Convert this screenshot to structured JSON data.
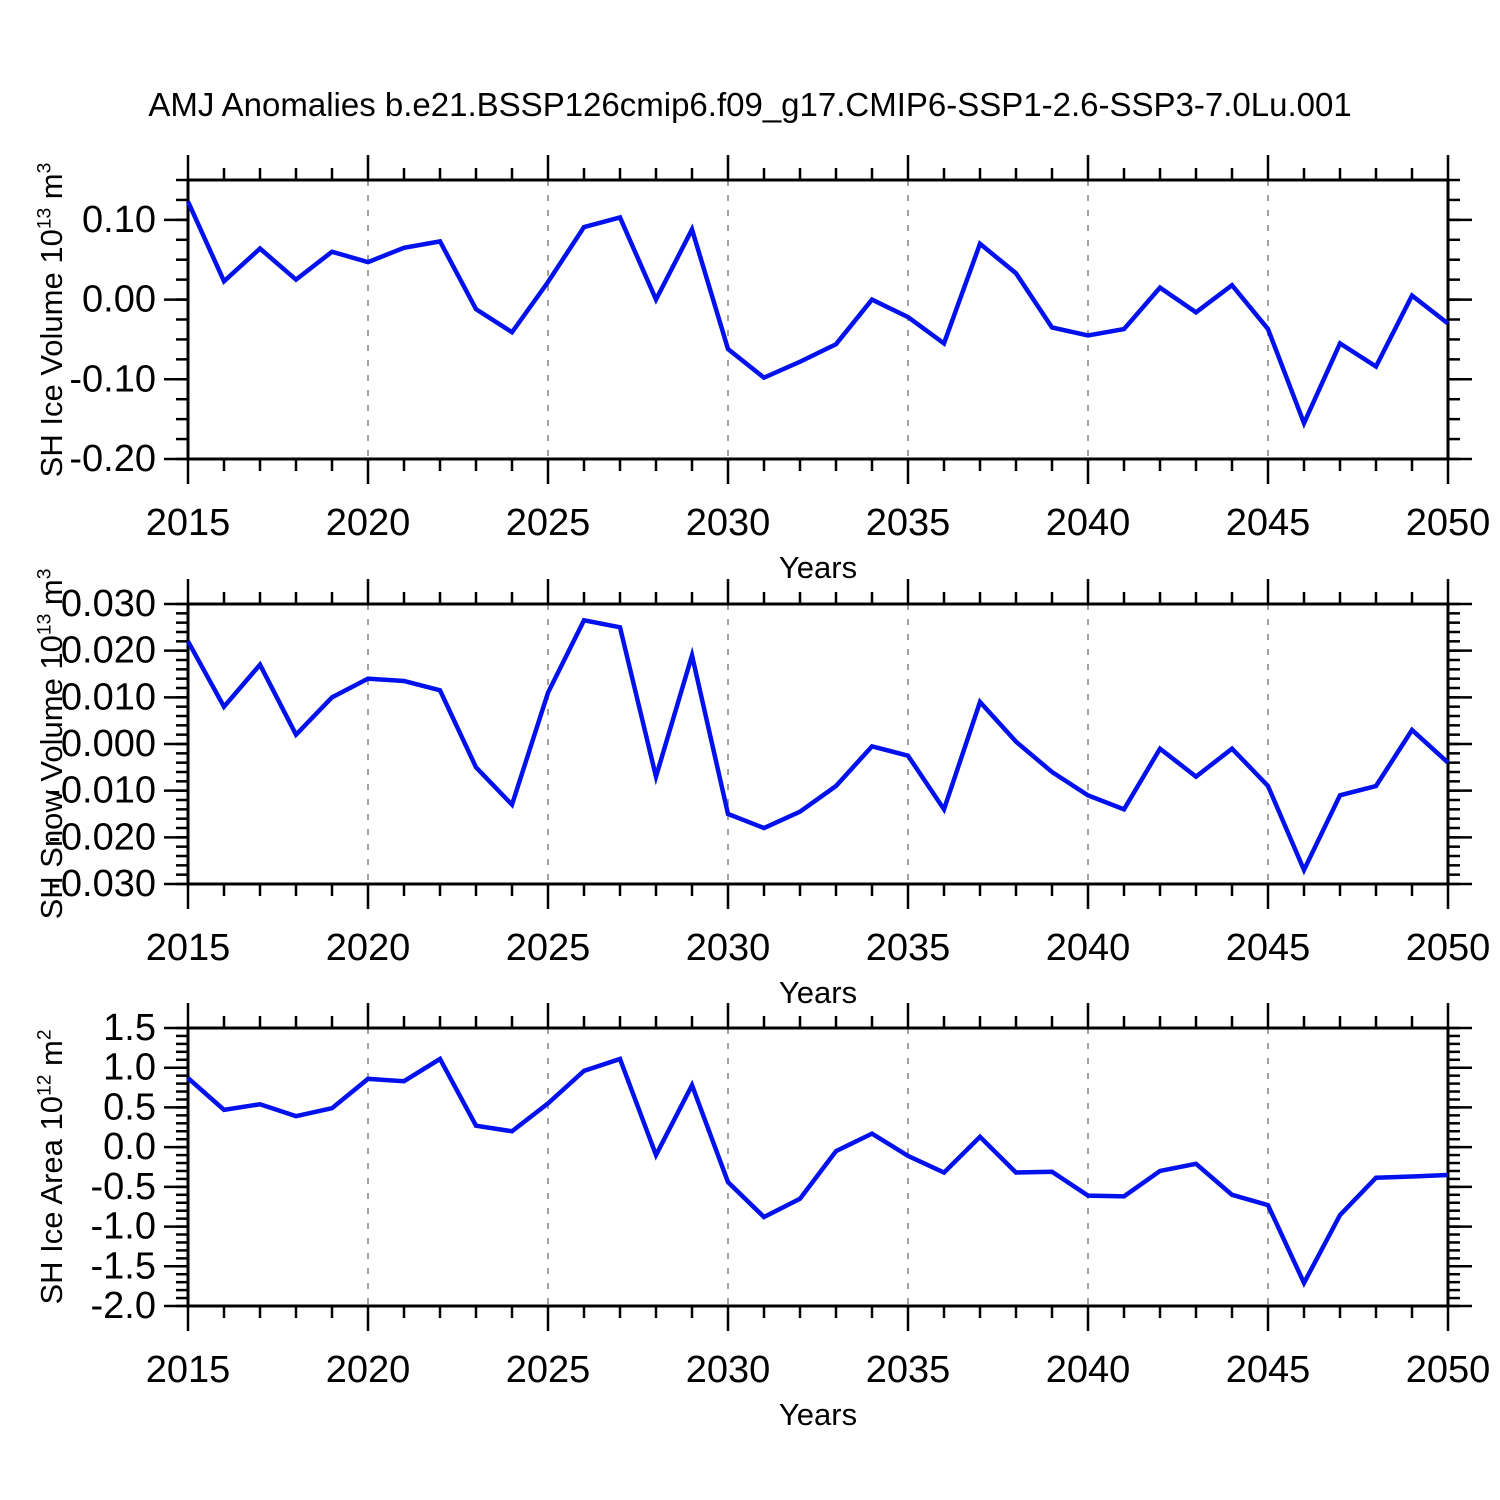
{
  "title": "AMJ Anomalies b.e21.BSSP126cmip6.f09_g17.CMIP6-SSP1-2.6-SSP3-7.0Lu.001",
  "xlabel": "Years",
  "line_color": "#0011ee",
  "grid_color": "#999999",
  "axis_color": "#000000",
  "chart_data": [
    {
      "type": "line",
      "name": "sh-ice-volume",
      "ylabel": {
        "prefix": "SH Ice Volume 10",
        "sup1": "13",
        "mid": " m",
        "sup2": "3"
      },
      "xlabel": "Years",
      "xlim": [
        2015,
        2050
      ],
      "ylim": [
        -0.2,
        0.15
      ],
      "yticks": [
        {
          "value": 0.1,
          "label": "0.10"
        },
        {
          "value": 0.0,
          "label": "0.00"
        },
        {
          "value": -0.1,
          "label": "-0.10"
        },
        {
          "value": -0.2,
          "label": "-0.20"
        }
      ],
      "yminor_step": 0.025,
      "xticks": [
        2015,
        2020,
        2025,
        2030,
        2035,
        2040,
        2045,
        2050
      ],
      "xminor_step": 1,
      "grid_x": [
        2020,
        2025,
        2030,
        2035,
        2040,
        2045
      ],
      "x": [
        2015,
        2016,
        2017,
        2018,
        2019,
        2020,
        2021,
        2022,
        2023,
        2024,
        2025,
        2026,
        2027,
        2028,
        2029,
        2030,
        2031,
        2032,
        2033,
        2034,
        2035,
        2036,
        2037,
        2038,
        2039,
        2040,
        2041,
        2042,
        2043,
        2044,
        2045,
        2046,
        2047,
        2048,
        2049,
        2050
      ],
      "values": [
        0.123,
        0.023,
        0.064,
        0.025,
        0.06,
        0.047,
        0.065,
        0.073,
        -0.012,
        -0.041,
        0.022,
        0.091,
        0.103,
        0.0,
        0.088,
        -0.062,
        -0.098,
        -0.078,
        -0.056,
        0.0,
        -0.022,
        -0.055,
        0.07,
        0.033,
        -0.035,
        -0.045,
        -0.037,
        0.015,
        -0.016,
        0.018,
        -0.037,
        -0.155,
        -0.055,
        -0.084,
        0.005,
        -0.03
      ]
    },
    {
      "type": "line",
      "name": "sh-snow-volume",
      "ylabel": {
        "prefix": "SH Snow Volume 10",
        "sup1": "13",
        "mid": " m",
        "sup2": "3"
      },
      "xlabel": "Years",
      "xlim": [
        2015,
        2050
      ],
      "ylim": [
        -0.03,
        0.03
      ],
      "yticks": [
        {
          "value": 0.03,
          "label": "0.030"
        },
        {
          "value": 0.02,
          "label": "0.020"
        },
        {
          "value": 0.01,
          "label": "0.010"
        },
        {
          "value": 0.0,
          "label": "0.000"
        },
        {
          "value": -0.01,
          "label": "-0.010"
        },
        {
          "value": -0.02,
          "label": "-0.020"
        },
        {
          "value": -0.03,
          "label": "-0.030"
        }
      ],
      "yminor_step": 0.002,
      "xticks": [
        2015,
        2020,
        2025,
        2030,
        2035,
        2040,
        2045,
        2050
      ],
      "xminor_step": 1,
      "grid_x": [
        2020,
        2025,
        2030,
        2035,
        2040,
        2045
      ],
      "x": [
        2015,
        2016,
        2017,
        2018,
        2019,
        2020,
        2021,
        2022,
        2023,
        2024,
        2025,
        2026,
        2027,
        2028,
        2029,
        2030,
        2031,
        2032,
        2033,
        2034,
        2035,
        2036,
        2037,
        2038,
        2039,
        2040,
        2041,
        2042,
        2043,
        2044,
        2045,
        2046,
        2047,
        2048,
        2049,
        2050
      ],
      "values": [
        0.022,
        0.008,
        0.017,
        0.002,
        0.01,
        0.014,
        0.0135,
        0.0115,
        -0.005,
        -0.013,
        0.011,
        0.0265,
        0.025,
        -0.007,
        0.019,
        -0.015,
        -0.018,
        -0.0145,
        -0.009,
        -0.0005,
        -0.0025,
        -0.014,
        0.009,
        0.0005,
        -0.006,
        -0.011,
        -0.014,
        -0.001,
        -0.007,
        -0.001,
        -0.009,
        -0.027,
        -0.011,
        -0.009,
        0.003,
        -0.004
      ]
    },
    {
      "type": "line",
      "name": "sh-ice-area",
      "ylabel": {
        "prefix": "SH Ice Area 10",
        "sup1": "12",
        "mid": " m",
        "sup2": "2"
      },
      "xlabel": "Years",
      "xlim": [
        2015,
        2050
      ],
      "ylim": [
        -2.0,
        1.5
      ],
      "yticks": [
        {
          "value": 1.5,
          "label": "1.5"
        },
        {
          "value": 1.0,
          "label": "1.0"
        },
        {
          "value": 0.5,
          "label": "0.5"
        },
        {
          "value": 0.0,
          "label": "0.0"
        },
        {
          "value": -0.5,
          "label": "-0.5"
        },
        {
          "value": -1.0,
          "label": "-1.0"
        },
        {
          "value": -1.5,
          "label": "-1.5"
        },
        {
          "value": -2.0,
          "label": "-2.0"
        }
      ],
      "yminor_step": 0.1,
      "xticks": [
        2015,
        2020,
        2025,
        2030,
        2035,
        2040,
        2045,
        2050
      ],
      "xminor_step": 1,
      "grid_x": [
        2020,
        2025,
        2030,
        2035,
        2040,
        2045
      ],
      "x": [
        2015,
        2016,
        2017,
        2018,
        2019,
        2020,
        2021,
        2022,
        2023,
        2024,
        2025,
        2026,
        2027,
        2028,
        2029,
        2030,
        2031,
        2032,
        2033,
        2034,
        2035,
        2036,
        2037,
        2038,
        2039,
        2040,
        2041,
        2042,
        2043,
        2044,
        2045,
        2046,
        2047,
        2048,
        2049,
        2050
      ],
      "values": [
        0.87,
        0.47,
        0.54,
        0.39,
        0.49,
        0.86,
        0.83,
        1.11,
        0.27,
        0.2,
        0.55,
        0.96,
        1.11,
        -0.1,
        0.78,
        -0.44,
        -0.88,
        -0.65,
        -0.05,
        0.17,
        -0.11,
        -0.32,
        0.13,
        -0.32,
        -0.31,
        -0.61,
        -0.62,
        -0.3,
        -0.21,
        -0.6,
        -0.73,
        -1.71,
        -0.855,
        -0.385,
        -0.37,
        -0.35
      ]
    }
  ]
}
